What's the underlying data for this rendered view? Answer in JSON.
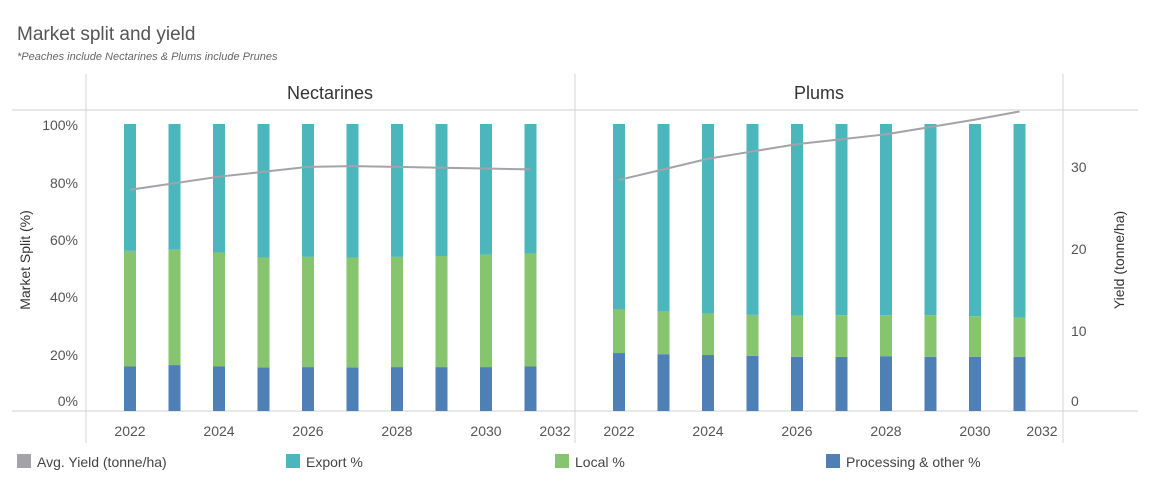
{
  "chart_data": {
    "type": "bar",
    "title": "Market split and yield",
    "subtitle": "*Peaches include Nectarines & Plums include Prunes",
    "ylabel": "Market Split (%)",
    "y2label": "Yield (tonne/ha)",
    "ylim": [
      0,
      100
    ],
    "y2lim": [
      0,
      35
    ],
    "yticks": [
      "0%",
      "20%",
      "40%",
      "60%",
      "80%",
      "100%"
    ],
    "y2ticks": [
      "0",
      "10",
      "20",
      "30"
    ],
    "xticks": [
      "2022",
      "2024",
      "2026",
      "2028",
      "2030",
      "2032"
    ],
    "legend_position": "bottom",
    "colors": {
      "yield": "#a3a3a8",
      "export": "#4bb6bc",
      "local": "#86c56e",
      "processing": "#4e7fb5"
    },
    "legend": [
      {
        "key": "yield",
        "label": "Avg. Yield (tonne/ha)"
      },
      {
        "key": "export",
        "label": "Export %"
      },
      {
        "key": "local",
        "label": "Local %"
      },
      {
        "key": "processing",
        "label": "Processing & other %"
      }
    ],
    "panels": [
      {
        "name": "Nectarines",
        "years": [
          2022,
          2023,
          2024,
          2025,
          2026,
          2027,
          2028,
          2029,
          2030,
          2031
        ],
        "processing": [
          15.5,
          16,
          15.5,
          15.2,
          15.3,
          15.2,
          15.3,
          15.3,
          15.3,
          15.5
        ],
        "local": [
          40.3,
          40.2,
          39.7,
          38.3,
          38.4,
          38.3,
          38.4,
          38.7,
          39.2,
          39.4
        ],
        "export": [
          44.2,
          43.8,
          44.8,
          46.5,
          46.3,
          46.5,
          46.3,
          46,
          45.5,
          45.1
        ],
        "yield": [
          25.8,
          26.6,
          27.4,
          28.0,
          28.6,
          28.7,
          28.6,
          28.5,
          28.4,
          28.3
        ]
      },
      {
        "name": "Plums",
        "years": [
          2022,
          2023,
          2024,
          2025,
          2026,
          2027,
          2028,
          2029,
          2030,
          2031
        ],
        "processing": [
          20.2,
          19.8,
          19.5,
          19.2,
          18.9,
          18.9,
          19.1,
          18.9,
          18.9,
          18.9
        ],
        "local": [
          15.2,
          14.9,
          14.5,
          14.3,
          14.4,
          14.5,
          14.3,
          14.5,
          14.1,
          13.7
        ],
        "export": [
          64.6,
          65.3,
          66,
          66.5,
          66.7,
          66.6,
          66.6,
          66.6,
          67,
          67.4
        ],
        "yield": [
          27.0,
          28.3,
          29.6,
          30.5,
          31.4,
          32.0,
          32.6,
          33.5,
          34.4,
          35.4
        ]
      }
    ]
  }
}
